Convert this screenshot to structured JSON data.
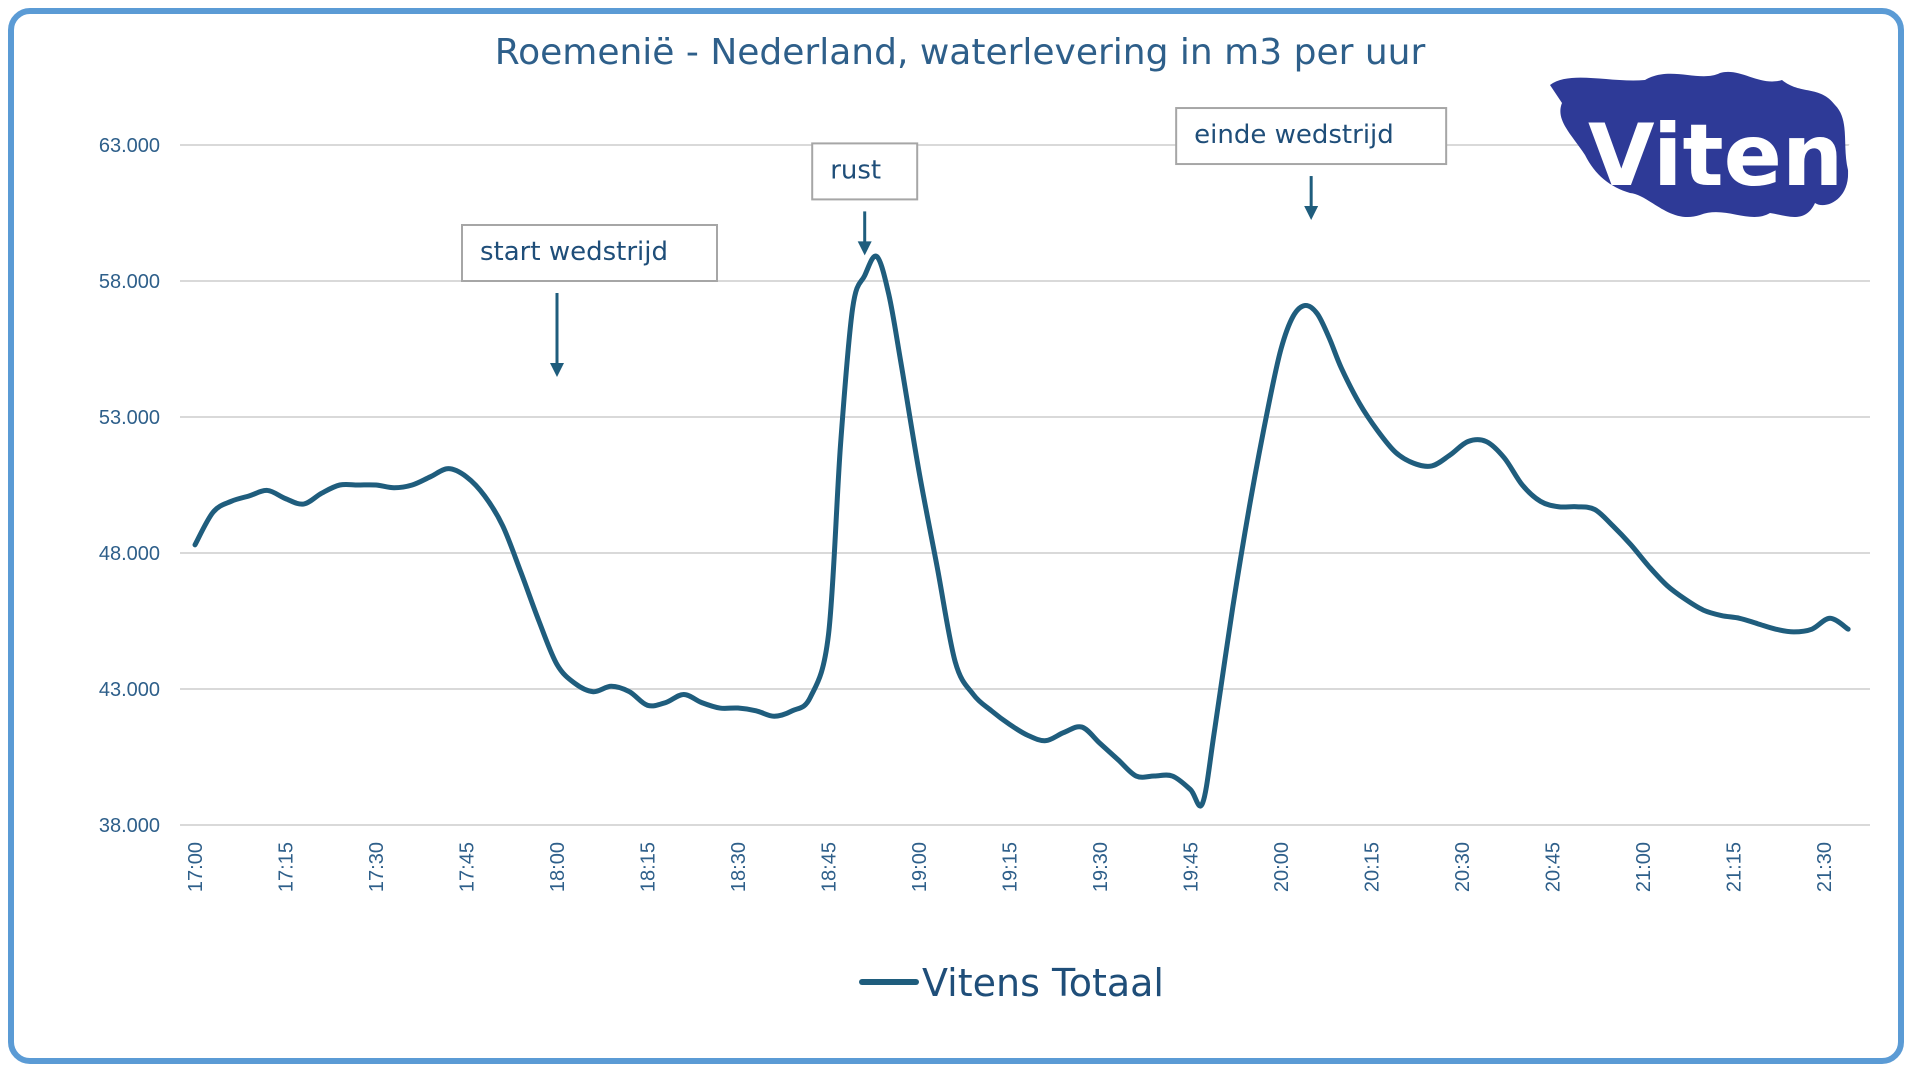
{
  "chart_data": {
    "type": "line",
    "title": "Roemenië - Nederland, waterlevering in m3 per uur",
    "xlabel": "",
    "ylabel": "",
    "ylim": [
      38000,
      63000
    ],
    "yticks": [
      38000,
      43000,
      48000,
      53000,
      58000,
      63000
    ],
    "ytick_labels": [
      "38.000",
      "43.000",
      "48.000",
      "53.000",
      "58.000",
      "63.000"
    ],
    "xlim": [
      "17:00",
      "21:35"
    ],
    "xtick_labels": [
      "17:00",
      "17:15",
      "17:30",
      "17:45",
      "18:00",
      "18:15",
      "18:30",
      "18:45",
      "19:00",
      "19:15",
      "19:30",
      "19:45",
      "20:00",
      "20:15",
      "20:30",
      "20:45",
      "21:00",
      "21:15",
      "21:30"
    ],
    "grid": true,
    "legend": {
      "position": "bottom",
      "entries": [
        "Vitens Totaal"
      ]
    },
    "line_color": "#1f5d7d",
    "series": [
      {
        "name": "Vitens Totaal",
        "x": [
          "17:00",
          "17:03",
          "17:06",
          "17:09",
          "17:12",
          "17:15",
          "17:18",
          "17:21",
          "17:24",
          "17:27",
          "17:30",
          "17:33",
          "17:36",
          "17:39",
          "17:42",
          "17:45",
          "17:48",
          "17:51",
          "17:54",
          "17:57",
          "18:00",
          "18:03",
          "18:06",
          "18:09",
          "18:12",
          "18:15",
          "18:18",
          "18:21",
          "18:24",
          "18:27",
          "18:30",
          "18:33",
          "18:36",
          "18:39",
          "18:42",
          "18:45",
          "18:47",
          "18:49",
          "18:51",
          "18:53",
          "18:55",
          "18:57",
          "19:00",
          "19:03",
          "19:06",
          "19:09",
          "19:12",
          "19:15",
          "19:18",
          "19:21",
          "19:24",
          "19:27",
          "19:30",
          "19:33",
          "19:36",
          "19:39",
          "19:42",
          "19:45",
          "19:47",
          "19:49",
          "19:52",
          "19:55",
          "19:58",
          "20:00",
          "20:02",
          "20:04",
          "20:06",
          "20:08",
          "20:10",
          "20:13",
          "20:16",
          "20:19",
          "20:22",
          "20:25",
          "20:28",
          "20:31",
          "20:34",
          "20:37",
          "20:40",
          "20:43",
          "20:46",
          "20:49",
          "20:52",
          "20:55",
          "20:58",
          "21:01",
          "21:04",
          "21:07",
          "21:10",
          "21:13",
          "21:16",
          "21:19",
          "21:22",
          "21:25",
          "21:28",
          "21:31",
          "21:34"
        ],
        "values": [
          48300,
          49500,
          49900,
          50100,
          50300,
          50000,
          49800,
          50200,
          50500,
          50500,
          50500,
          50400,
          50500,
          50800,
          51100,
          50800,
          50100,
          49000,
          47300,
          45500,
          43900,
          43200,
          42900,
          43100,
          42900,
          42400,
          42500,
          42800,
          42500,
          42300,
          42300,
          42200,
          42000,
          42200,
          42700,
          45000,
          52000,
          57000,
          58200,
          58900,
          57500,
          55000,
          51000,
          47500,
          44000,
          42800,
          42200,
          41700,
          41300,
          41100,
          41400,
          41600,
          41000,
          40400,
          39800,
          39800,
          39800,
          39300,
          38800,
          41500,
          46000,
          50000,
          53500,
          55500,
          56700,
          57100,
          56800,
          55900,
          54800,
          53500,
          52500,
          51700,
          51300,
          51200,
          51600,
          52100,
          52100,
          51500,
          50500,
          49900,
          49700,
          49700,
          49600,
          49000,
          48300,
          47500,
          46800,
          46300,
          45900,
          45700,
          45600,
          45400,
          45200,
          45100,
          45200,
          45600,
          45200
        ]
      }
    ],
    "annotations": [
      {
        "text": "start wedstrijd",
        "x": "18:00",
        "y": 58000
      },
      {
        "text": "rust",
        "x": "18:51",
        "y": 61000
      },
      {
        "text": "einde wedstrijd",
        "x": "20:05",
        "y": 62300
      }
    ]
  },
  "logo": {
    "text": "Vitens",
    "color": "#2e3a97"
  }
}
